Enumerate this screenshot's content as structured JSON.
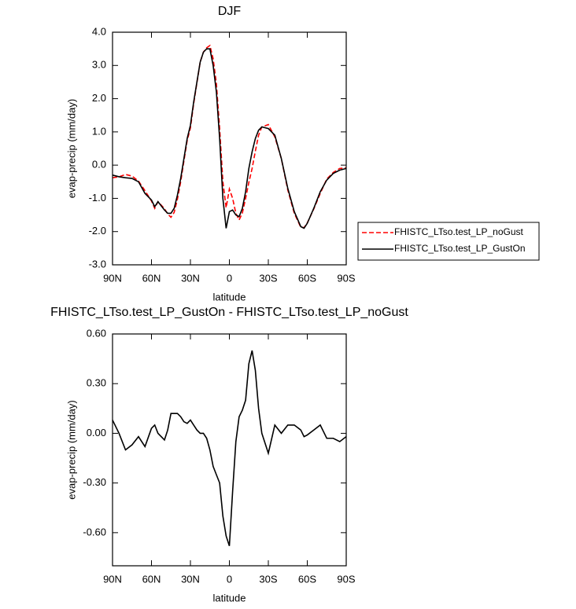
{
  "chart_data": [
    {
      "type": "line",
      "title": "DJF",
      "x_label": "latitude",
      "y_label": "evap-precip (mm/day)",
      "x": [
        90,
        85,
        80,
        75,
        70,
        65,
        60,
        57.5,
        55,
        50,
        47.5,
        45,
        42.5,
        40,
        37.5,
        35,
        32.5,
        30,
        27.5,
        25,
        22.5,
        20,
        17.5,
        15,
        12.5,
        10,
        7.5,
        5,
        2.5,
        0,
        -2.5,
        -5,
        -7.5,
        -10,
        -12.5,
        -15,
        -17.5,
        -20,
        -22.5,
        -25,
        -30,
        -35,
        -40,
        -45,
        -50,
        -55,
        -57.5,
        -60,
        -65,
        -70,
        -75,
        -80,
        -85,
        -90
      ],
      "xlim": [
        90,
        -90
      ],
      "xticks": [
        {
          "value": 90,
          "label": "90N"
        },
        {
          "value": 60,
          "label": "60N"
        },
        {
          "value": 30,
          "label": "30N"
        },
        0,
        {
          "value": -30,
          "label": "30S"
        },
        {
          "value": -60,
          "label": "60S"
        },
        {
          "value": -90,
          "label": "90S"
        }
      ],
      "ylim": [
        -3,
        4
      ],
      "yticks": [
        {
          "value": 4,
          "label": "4.0"
        },
        {
          "value": 3,
          "label": "3.0"
        },
        {
          "value": 2,
          "label": "2.0"
        },
        {
          "value": 1,
          "label": "1.0"
        },
        {
          "value": 0,
          "label": "0.0"
        },
        {
          "value": -1,
          "label": "-1.0"
        },
        {
          "value": -2,
          "label": "-2.0"
        },
        {
          "value": -3,
          "label": "-3.0"
        }
      ],
      "legend": "outside-right",
      "series": [
        {
          "name": "FHISTC_LTso.test_LP_noGust",
          "color": "#ff0000",
          "linestyle": "dashed",
          "values": [
            -0.38,
            -0.35,
            -0.28,
            -0.33,
            -0.48,
            -0.77,
            -1.08,
            -1.3,
            -1.1,
            -1.31,
            -1.47,
            -1.57,
            -1.42,
            -1.02,
            -0.5,
            0.13,
            0.74,
            1.12,
            1.85,
            2.48,
            3.1,
            3.4,
            3.53,
            3.6,
            3.2,
            2.45,
            1.1,
            -0.5,
            -1.28,
            -0.72,
            -1.0,
            -1.45,
            -1.65,
            -1.44,
            -1.0,
            -0.52,
            -0.1,
            0.42,
            0.9,
            1.15,
            1.22,
            0.85,
            0.2,
            -0.75,
            -1.45,
            -1.87,
            -1.88,
            -1.74,
            -1.32,
            -0.85,
            -0.42,
            -0.22,
            -0.1,
            -0.08
          ]
        },
        {
          "name": "FHISTC_LTso.test_LP_GustOn",
          "color": "#000000",
          "linestyle": "solid",
          "values": [
            -0.3,
            -0.35,
            -0.38,
            -0.4,
            -0.5,
            -0.85,
            -1.05,
            -1.25,
            -1.1,
            -1.35,
            -1.45,
            -1.45,
            -1.3,
            -0.9,
            -0.4,
            0.2,
            0.8,
            1.2,
            1.9,
            2.5,
            3.1,
            3.4,
            3.5,
            3.5,
            3.0,
            2.2,
            0.8,
            -1.0,
            -1.9,
            -1.4,
            -1.35,
            -1.5,
            -1.55,
            -1.3,
            -0.8,
            -0.1,
            0.4,
            0.8,
            1.05,
            1.15,
            1.1,
            0.9,
            0.2,
            -0.7,
            -1.4,
            -1.85,
            -1.9,
            -1.75,
            -1.3,
            -0.8,
            -0.45,
            -0.25,
            -0.15,
            -0.1
          ]
        }
      ]
    },
    {
      "type": "line",
      "title": "FHISTC_LTso.test_LP_GustOn - FHISTC_LTso.test_LP_noGust",
      "x_label": "latitude",
      "y_label": "evap-precip (mm/day)",
      "x": [
        90,
        85,
        80,
        75,
        70,
        65,
        60,
        57.5,
        55,
        50,
        47.5,
        45,
        42.5,
        40,
        37.5,
        35,
        32.5,
        30,
        27.5,
        25,
        22.5,
        20,
        17.5,
        15,
        12.5,
        10,
        7.5,
        5,
        2.5,
        0,
        -2.5,
        -5,
        -7.5,
        -10,
        -12.5,
        -15,
        -17.5,
        -20,
        -22.5,
        -25,
        -30,
        -35,
        -40,
        -45,
        -50,
        -55,
        -57.5,
        -60,
        -65,
        -70,
        -75,
        -80,
        -85,
        -90
      ],
      "xlim": [
        90,
        -90
      ],
      "xticks": [
        {
          "value": 90,
          "label": "90N"
        },
        {
          "value": 60,
          "label": "60N"
        },
        {
          "value": 30,
          "label": "30N"
        },
        0,
        {
          "value": -30,
          "label": "30S"
        },
        {
          "value": -60,
          "label": "60S"
        },
        {
          "value": -90,
          "label": "90S"
        }
      ],
      "ylim": [
        -0.8,
        0.6
      ],
      "yticks": [
        {
          "value": 0.6,
          "label": "0.60"
        },
        {
          "value": 0.3,
          "label": "0.30"
        },
        {
          "value": 0,
          "label": "0.00"
        },
        {
          "value": -0.3,
          "label": "-0.30"
        },
        {
          "value": -0.6,
          "label": "-0.60"
        }
      ],
      "series": [
        {
          "color": "#000000",
          "linestyle": "solid",
          "values": [
            0.08,
            0.0,
            -0.1,
            -0.07,
            -0.02,
            -0.08,
            0.03,
            0.05,
            0.0,
            -0.04,
            0.02,
            0.12,
            0.12,
            0.12,
            0.1,
            0.07,
            0.06,
            0.08,
            0.05,
            0.02,
            0.0,
            0.0,
            -0.03,
            -0.1,
            -0.2,
            -0.25,
            -0.3,
            -0.5,
            -0.62,
            -0.68,
            -0.35,
            -0.05,
            0.1,
            0.14,
            0.2,
            0.42,
            0.5,
            0.38,
            0.15,
            0.0,
            -0.12,
            0.05,
            0.0,
            0.05,
            0.05,
            0.02,
            -0.02,
            -0.01,
            0.02,
            0.05,
            -0.03,
            -0.03,
            -0.05,
            -0.02
          ]
        }
      ]
    }
  ]
}
